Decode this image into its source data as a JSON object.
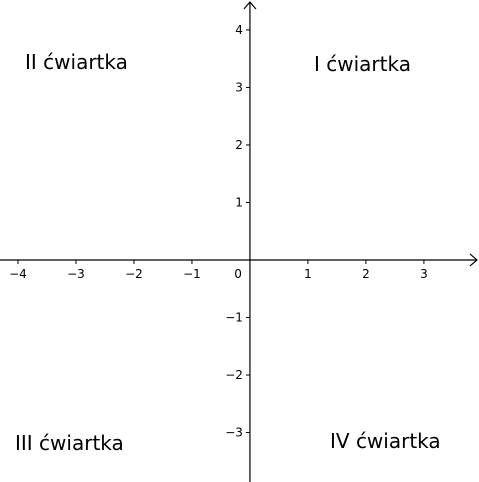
{
  "axes": {
    "xlim": [
      -4.31,
      3.95
    ],
    "ylim": [
      -3.86,
      4.52
    ],
    "xticks": [
      {
        "value": -4,
        "label": "−4"
      },
      {
        "value": -3,
        "label": "−3"
      },
      {
        "value": -2,
        "label": "−2"
      },
      {
        "value": -1,
        "label": "−1"
      },
      1,
      2,
      3
    ],
    "yticks": [
      {
        "value": -3,
        "label": "−3"
      },
      {
        "value": -2,
        "label": "−2"
      },
      {
        "value": -1,
        "label": "−1"
      },
      1,
      2,
      3,
      4
    ],
    "origin_label": "0"
  },
  "quadrants": [
    {
      "label": "II ćwiartka"
    },
    {
      "label": "I ćwiartka"
    },
    {
      "label": "III ćwiartka"
    },
    {
      "label": "IV ćwiartka"
    }
  ]
}
